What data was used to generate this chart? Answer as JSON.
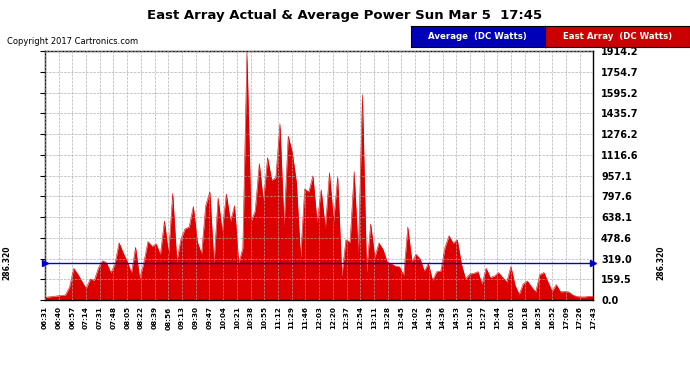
{
  "title": "East Array Actual & Average Power Sun Mar 5  17:45",
  "copyright": "Copyright 2017 Cartronics.com",
  "legend_labels": [
    "Average  (DC Watts)",
    "East Array  (DC Watts)"
  ],
  "legend_blue_bg": "#0000bb",
  "legend_red_bg": "#cc0000",
  "average_value": 286.32,
  "yticks": [
    0.0,
    159.5,
    319.0,
    478.6,
    638.1,
    797.6,
    957.1,
    1116.6,
    1276.2,
    1435.7,
    1595.2,
    1754.7,
    1914.2
  ],
  "ymax": 1914.2,
  "ymin": 0.0,
  "fill_color": "#dd0000",
  "average_line_color": "#0000cc",
  "background_color": "#ffffff",
  "grid_color": "#aaaaaa",
  "border_color": "#000000",
  "xtick_labels": [
    "06:31",
    "06:40",
    "06:57",
    "07:14",
    "07:31",
    "07:48",
    "08:05",
    "08:22",
    "08:39",
    "08:56",
    "09:13",
    "09:30",
    "09:47",
    "10:04",
    "10:21",
    "10:38",
    "10:55",
    "11:12",
    "11:29",
    "11:46",
    "12:03",
    "12:20",
    "12:37",
    "12:54",
    "13:11",
    "13:28",
    "13:45",
    "14:02",
    "14:19",
    "14:36",
    "14:53",
    "15:10",
    "15:27",
    "15:44",
    "16:01",
    "16:18",
    "16:35",
    "16:52",
    "17:09",
    "17:26",
    "17:43"
  ]
}
